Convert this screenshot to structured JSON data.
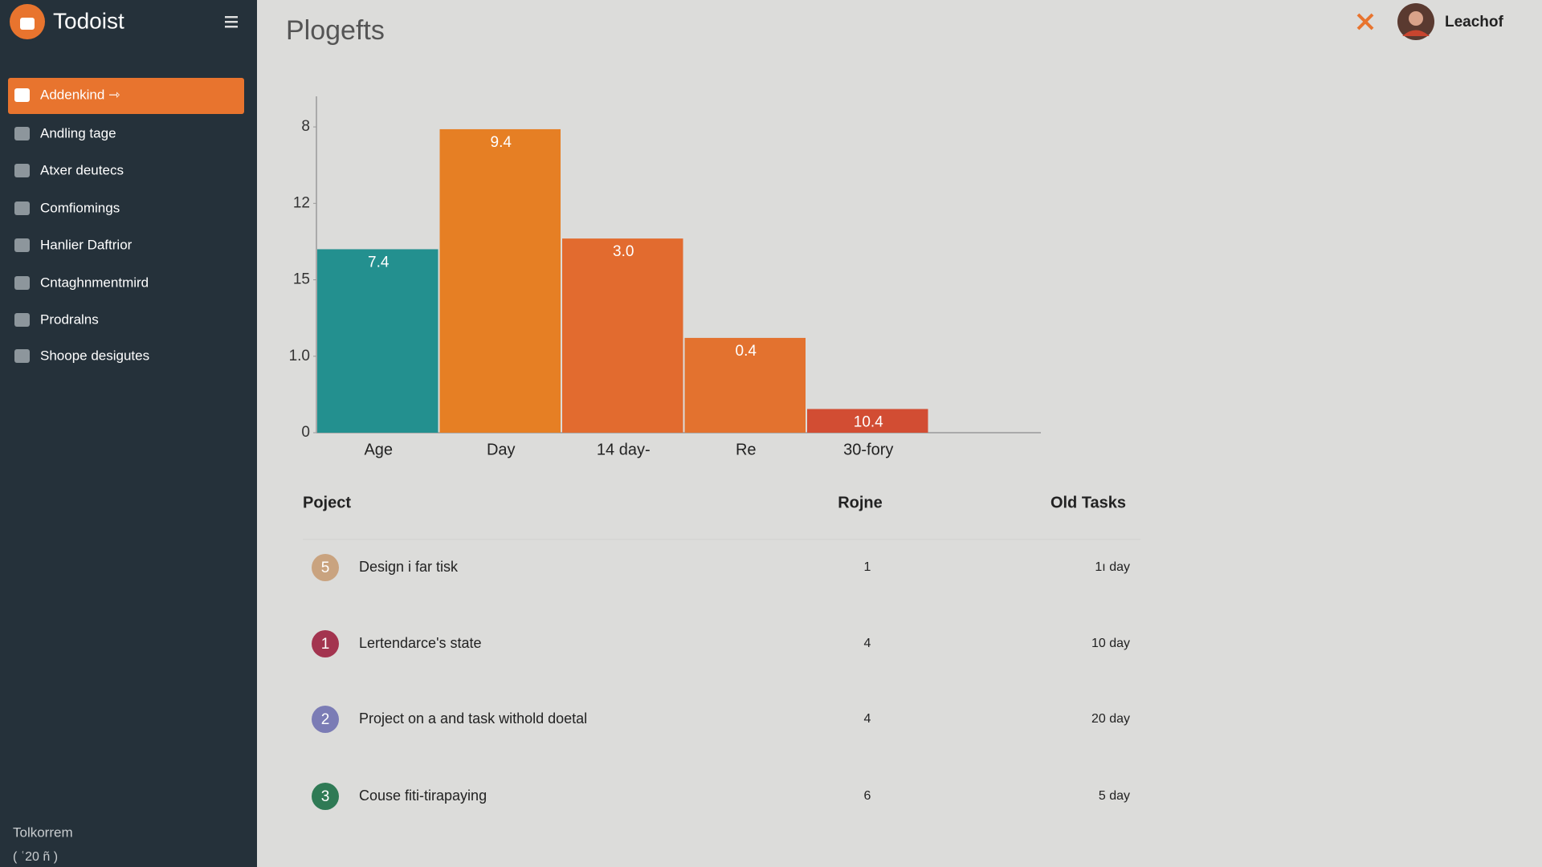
{
  "app": {
    "name": "Todoist"
  },
  "sidebar": {
    "items": [
      "Addenkind ⇾",
      "Andling tage",
      "Atxer deutecs",
      "Comfiomings",
      "Hanlier Daftrior",
      "Cntaghnmentmird",
      "Prodralns",
      "Shoope desigutes"
    ],
    "footer": {
      "title": "Tolkorrem",
      "subtitle": "( ʿ20 ñ )"
    }
  },
  "header": {
    "title": "Plogefts",
    "user": "Leachof"
  },
  "chart_data": {
    "type": "bar",
    "categories": [
      "Age",
      "Day",
      "14 day-",
      "Re",
      "30-fory"
    ],
    "values": [
      2.4,
      3.97,
      2.54,
      1.24,
      0.31
    ],
    "colors": [
      "#23908f",
      "#e67f24",
      "#e26b2f",
      "#e3722f",
      "#d24d33"
    ],
    "annotations": [
      "7.4",
      "9.4",
      "3.0",
      "0.4",
      "10.4"
    ],
    "ylim": [
      0,
      4.4
    ],
    "yticks": [
      {
        "value": 0,
        "label": "0"
      },
      {
        "value": 1,
        "label": "1.0"
      },
      {
        "value": 2,
        "label": "15"
      },
      {
        "value": 3,
        "label": "12"
      },
      {
        "value": 4,
        "label": "8"
      }
    ]
  },
  "table": {
    "headers": [
      "Poject",
      "Rojne",
      "Old Tasks"
    ],
    "rows": [
      {
        "badge": "5",
        "badge_color": "#c9a37f",
        "cells": [
          "Design i far tisk",
          "1",
          "1ı day"
        ]
      },
      {
        "badge": "1",
        "badge_color": "#a3344f",
        "cells": [
          "Lertendarce's state",
          "4",
          "10 day"
        ]
      },
      {
        "badge": "2",
        "badge_color": "#7b7cb5",
        "cells": [
          "Project on a and task withold doetal",
          "4",
          "20 day"
        ]
      },
      {
        "badge": "3",
        "badge_color": "#2f7a55",
        "cells": [
          "Couse fiti-tirapaying",
          "6",
          "5 day"
        ]
      }
    ]
  }
}
